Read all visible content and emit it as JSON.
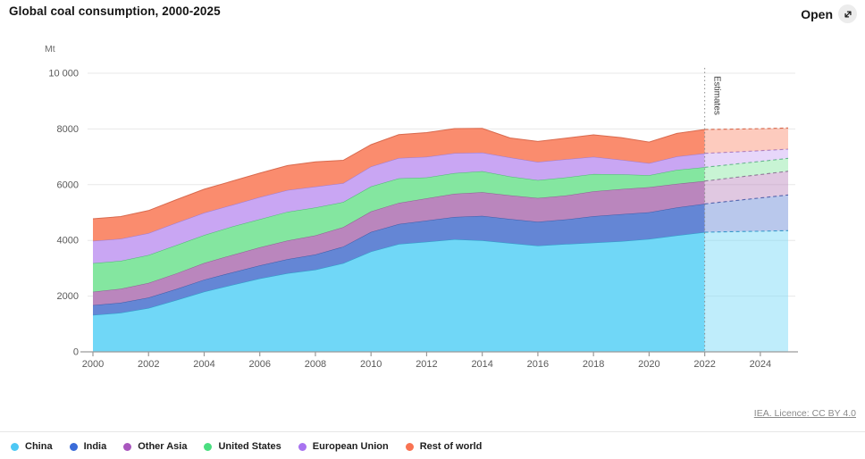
{
  "header": {
    "title": "Global coal consumption, 2000-2025",
    "open_label": "Open"
  },
  "footer": {
    "licence": "IEA. Licence: CC BY 4.0"
  },
  "chart_data": {
    "type": "area",
    "stacked": true,
    "title": "Global coal consumption, 2000-2025",
    "unit_label": "Mt",
    "ylabel": "Mt",
    "ylim": [
      0,
      10000
    ],
    "grid": true,
    "legend_position": "bottom",
    "y_tick_labels": [
      "0",
      "2000",
      "4000",
      "6000",
      "8000",
      "10 000"
    ],
    "y_tick_values": [
      0,
      2000,
      4000,
      6000,
      8000,
      10000
    ],
    "x_tick_years": [
      2000,
      2002,
      2004,
      2006,
      2008,
      2010,
      2012,
      2014,
      2016,
      2018,
      2020,
      2022,
      2024
    ],
    "estimates_label": "Estimates",
    "estimates_from": 2022,
    "x": [
      2000,
      2001,
      2002,
      2003,
      2004,
      2005,
      2006,
      2007,
      2008,
      2009,
      2010,
      2011,
      2012,
      2013,
      2014,
      2015,
      2016,
      2017,
      2018,
      2019,
      2020,
      2021,
      2022,
      2023,
      2024,
      2025
    ],
    "series": [
      {
        "name": "China",
        "dot_color": "#4EC8F4",
        "fill": "#70D7F7",
        "stroke": "#2E9DC8",
        "values": [
          1320,
          1400,
          1570,
          1860,
          2160,
          2400,
          2630,
          2820,
          2950,
          3180,
          3600,
          3870,
          3950,
          4040,
          4000,
          3900,
          3810,
          3870,
          3920,
          3970,
          4050,
          4180,
          4295,
          4315,
          4330,
          4350
        ]
      },
      {
        "name": "India",
        "dot_color": "#3A6BD8",
        "fill": "#6486D5",
        "stroke": "#3C5CA8",
        "values": [
          355,
          362,
          375,
          395,
          430,
          450,
          470,
          505,
          545,
          595,
          700,
          715,
          760,
          800,
          880,
          870,
          856,
          880,
          950,
          970,
          960,
          1000,
          1016,
          1105,
          1195,
          1282
        ]
      },
      {
        "name": "Other Asia",
        "dot_color": "#A957BE",
        "fill": "#BA86BD",
        "stroke": "#8F5E93",
        "values": [
          480,
          500,
          525,
          560,
          600,
          625,
          650,
          670,
          685,
          700,
          737,
          760,
          800,
          833,
          850,
          845,
          853,
          860,
          890,
          900,
          900,
          850,
          820,
          830,
          840,
          853
        ]
      },
      {
        "name": "United States",
        "dot_color": "#4ADE80",
        "fill": "#84E6A0",
        "stroke": "#4FB874",
        "values": [
          1025,
          1005,
          1005,
          1015,
          1000,
          1020,
          1010,
          1030,
          1000,
          900,
          900,
          880,
          750,
          740,
          750,
          680,
          641,
          650,
          620,
          530,
          430,
          500,
          494,
          480,
          470,
          462
        ]
      },
      {
        "name": "European Union",
        "dot_color": "#A873F0",
        "fill": "#C9A6F3",
        "stroke": "#9C7BD0",
        "values": [
          800,
          790,
          785,
          800,
          800,
          775,
          790,
          780,
          750,
          680,
          715,
          730,
          740,
          720,
          670,
          680,
          655,
          650,
          620,
          520,
          430,
          480,
          500,
          440,
          385,
          330
        ]
      },
      {
        "name": "Rest of world",
        "dot_color": "#F97352",
        "fill": "#FA8C6E",
        "stroke": "#D96A4E",
        "values": [
          795,
          800,
          810,
          830,
          845,
          855,
          865,
          880,
          890,
          820,
          783,
          840,
          870,
          880,
          870,
          700,
          735,
          760,
          790,
          800,
          760,
          830,
          855,
          825,
          790,
          758
        ]
      }
    ]
  }
}
